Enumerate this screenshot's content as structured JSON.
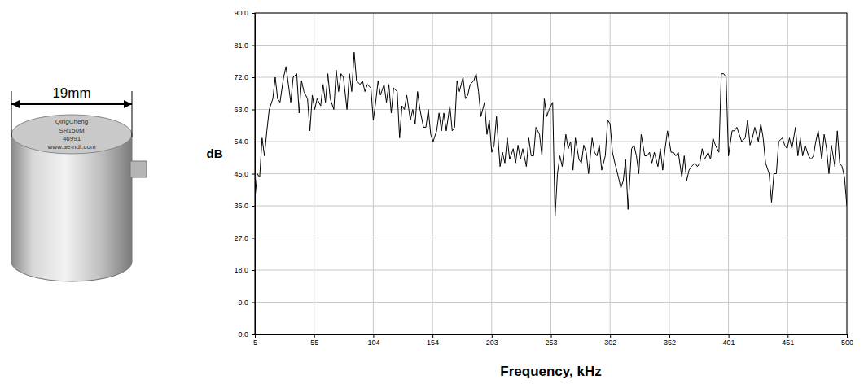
{
  "chart_data": {
    "type": "line",
    "x_label": "Frequency, kHz",
    "y_label": "dB",
    "color": "#000000",
    "grid": true,
    "annotations": [
      "19mm",
      "QingCheng",
      "SR150M",
      "46991",
      "www.ae-ndt.com"
    ],
    "xlim": [
      5,
      500
    ],
    "ylim": [
      0,
      90
    ],
    "xticks": [
      5,
      {
        "value": 54.5,
        "label": "55"
      },
      104,
      {
        "value": 153.5,
        "label": "154"
      },
      203,
      {
        "value": 252.5,
        "label": "253"
      },
      302,
      {
        "value": 351.5,
        "label": "352"
      },
      401,
      {
        "value": 450.5,
        "label": "451"
      },
      500
    ],
    "yticks": [
      {
        "value": 0,
        "label": "0.0"
      },
      {
        "value": 9,
        "label": "9.0"
      },
      {
        "value": 18,
        "label": "18.0"
      },
      {
        "value": 27,
        "label": "27.0"
      },
      {
        "value": 36,
        "label": "36.0"
      },
      {
        "value": 45,
        "label": "45.0"
      },
      {
        "value": 54,
        "label": "54.0"
      },
      {
        "value": 63,
        "label": "63.0"
      },
      {
        "value": 72,
        "label": "72.0"
      },
      {
        "value": 81,
        "label": "81.0"
      },
      {
        "value": 90,
        "label": "90.0"
      }
    ],
    "x": [
      5,
      7,
      9,
      11,
      13,
      15,
      17,
      20,
      22,
      24,
      26,
      29,
      31,
      33,
      35,
      37,
      40,
      42,
      44,
      46,
      49,
      51,
      53,
      55,
      57,
      60,
      62,
      64,
      66,
      68,
      71,
      73,
      75,
      77,
      79,
      82,
      84,
      86,
      88,
      90,
      93,
      95,
      97,
      99,
      102,
      104,
      106,
      108,
      110,
      113,
      115,
      117,
      119,
      121,
      124,
      126,
      128,
      130,
      132,
      135,
      137,
      139,
      141,
      143,
      146,
      148,
      150,
      152,
      154,
      157,
      159,
      161,
      163,
      165,
      168,
      170,
      172,
      174,
      176,
      179,
      181,
      183,
      185,
      188,
      190,
      192,
      194,
      197,
      199,
      201,
      203,
      205,
      207,
      210,
      212,
      214,
      216,
      218,
      221,
      223,
      225,
      227,
      229,
      232,
      234,
      236,
      238,
      240,
      243,
      245,
      247,
      249,
      251,
      254,
      256,
      258,
      260,
      262,
      265,
      267,
      269,
      271,
      273,
      276,
      278,
      280,
      282,
      284,
      287,
      289,
      291,
      293,
      295,
      298,
      300,
      302,
      304,
      306,
      309,
      311,
      313,
      315,
      317,
      320,
      322,
      324,
      326,
      328,
      331,
      333,
      335,
      337,
      339,
      342,
      344,
      346,
      348,
      350,
      353,
      355,
      357,
      359,
      362,
      364,
      366,
      368,
      370,
      373,
      375,
      377,
      379,
      381,
      384,
      386,
      388,
      390,
      393,
      395,
      397,
      399,
      401,
      404,
      406,
      408,
      410,
      412,
      415,
      417,
      419,
      421,
      423,
      426,
      428,
      430,
      432,
      435,
      437,
      439,
      441,
      443,
      446,
      448,
      450,
      452,
      454,
      457,
      459,
      461,
      463,
      465,
      468,
      470,
      472,
      474,
      476,
      479,
      481,
      483,
      485,
      487,
      490,
      492,
      494,
      496,
      498,
      500
    ],
    "values": [
      38,
      45,
      44,
      55,
      50,
      57,
      63,
      66,
      72,
      66,
      65,
      72,
      75,
      70,
      65,
      72,
      73,
      62,
      71,
      68,
      66,
      57,
      67,
      63,
      66,
      64,
      70,
      65,
      73,
      66,
      63,
      74,
      68,
      73,
      72,
      63,
      73,
      68,
      79,
      71,
      70,
      71,
      68,
      70,
      69,
      60,
      65,
      71,
      67,
      70,
      65,
      70,
      62,
      69,
      68,
      55,
      64,
      63,
      67,
      60,
      63,
      59,
      68,
      63,
      58,
      58,
      63,
      56,
      54,
      57,
      62,
      57,
      62,
      57,
      64,
      57,
      58,
      71,
      68,
      72,
      66,
      67,
      70,
      71,
      73,
      68,
      61,
      65,
      56,
      60,
      51,
      53,
      61,
      47,
      51,
      48,
      55,
      49,
      52,
      48,
      53,
      49,
      52,
      47,
      55,
      50,
      50,
      58,
      56,
      50,
      66,
      61,
      63,
      65,
      33,
      45,
      50,
      47,
      56,
      52,
      54,
      46,
      55,
      49,
      48,
      53,
      51,
      45,
      55,
      51,
      50,
      53,
      46,
      50,
      60,
      59,
      51,
      48,
      44,
      41,
      43,
      49,
      35,
      52,
      53,
      50,
      45,
      56,
      50,
      50,
      51,
      48,
      51,
      47,
      52,
      46,
      52,
      57,
      51,
      51,
      50,
      51,
      44,
      50,
      43,
      46,
      47,
      48,
      47,
      48,
      52,
      49,
      51,
      49,
      55,
      53,
      51,
      73,
      73,
      72,
      50,
      57,
      57,
      58,
      56,
      54,
      55,
      60,
      53,
      55,
      58,
      54,
      59,
      55,
      48,
      45,
      37,
      45,
      45,
      54,
      55,
      53,
      52,
      55,
      52,
      58,
      50,
      55,
      50,
      53,
      50,
      49,
      50,
      54,
      57,
      49,
      56,
      52,
      45,
      53,
      47,
      57,
      48,
      47,
      44,
      36
    ]
  }
}
